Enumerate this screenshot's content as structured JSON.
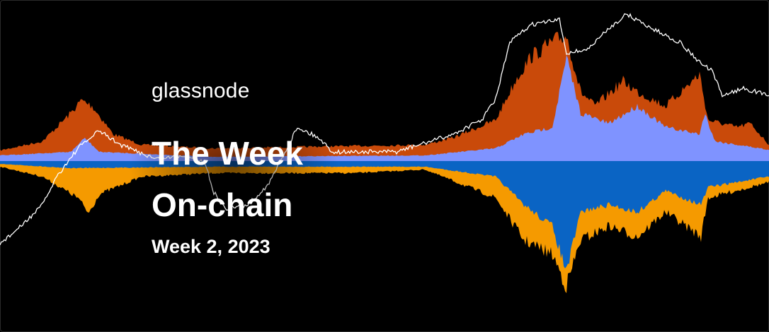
{
  "brand": "glassnode",
  "title_line1": "The Week",
  "title_line2": "On-chain",
  "subtitle": "Week 2, 2023",
  "colors": {
    "background": "#000000",
    "upper_orange": "#c94a0a",
    "upper_blue": "#7f93ff",
    "lower_orange": "#f59a00",
    "lower_blue": "#0a64c4",
    "price_line": "#ffffff"
  }
}
